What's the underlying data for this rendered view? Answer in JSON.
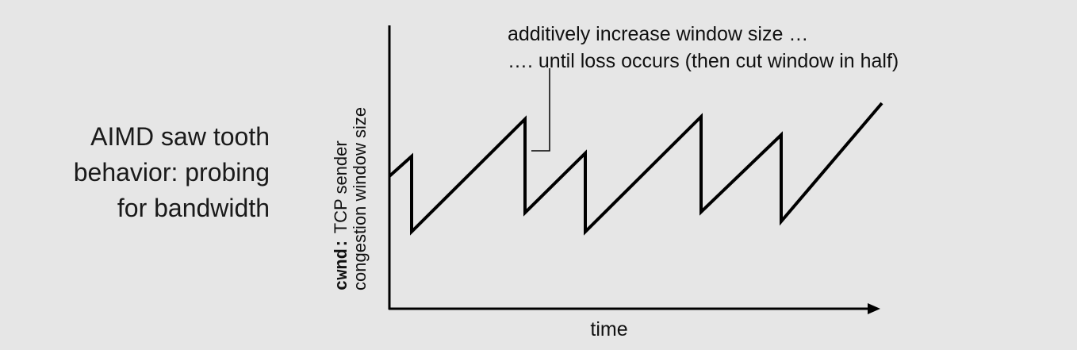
{
  "caption": {
    "line1": "AIMD saw tooth",
    "line2": "behavior: probing",
    "line3": "for bandwidth"
  },
  "annotation": {
    "line1": "additively increase window size …",
    "line2": "…. until loss occurs (then cut window in half)"
  },
  "y_axis": {
    "code": "cwnd:",
    "line1_rest": " TCP sender",
    "line2": "congestion window size"
  },
  "x_axis": {
    "label": "time"
  }
}
